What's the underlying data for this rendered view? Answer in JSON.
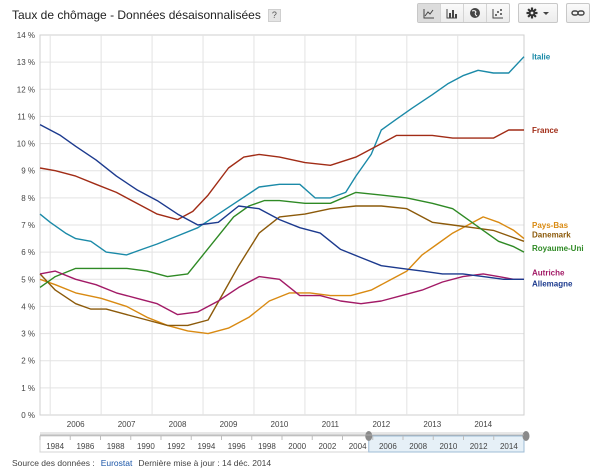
{
  "header": {
    "title": "Taux de chômage - Données désaisonnalisées",
    "help": "?"
  },
  "toolbar": {
    "view_buttons": [
      {
        "icon": "line-chart-icon",
        "active": true
      },
      {
        "icon": "bar-chart-icon",
        "active": false
      },
      {
        "icon": "globe-map-icon",
        "active": false
      },
      {
        "icon": "scatter-chart-icon",
        "active": false
      }
    ],
    "settings_icon": "gear-icon",
    "dropdown_icon": "chevron-down-icon",
    "link_icon": "chain-link-icon"
  },
  "colors": {
    "Italie": "#1b8aa8",
    "France": "#a12c16",
    "Pays-Bas": "#d98a12",
    "Danemark": "#8c5a0a",
    "Royaume-Uni": "#2f8a25",
    "Autriche": "#a21a66",
    "Allemagne": "#1c3a8e",
    "grid": "#e3e3e3",
    "label_blue": "#1a55a8"
  },
  "chart_data": {
    "type": "line",
    "title": "",
    "xlabel": "",
    "ylabel": "",
    "x_range": [
      2005.3,
      2014.8
    ],
    "x_ticks": [
      2006,
      2007,
      2008,
      2009,
      2010,
      2011,
      2012,
      2013,
      2014
    ],
    "ylim": [
      0,
      14
    ],
    "y_ticks": [
      "0 %",
      "1 %",
      "2 %",
      "3 %",
      "4 %",
      "5 %",
      "6 %",
      "7 %",
      "8 %",
      "9 %",
      "10 %",
      "11 %",
      "12 %",
      "13 %",
      "14 %"
    ],
    "grid": true,
    "legend": "right, end-of-line labels",
    "series": [
      {
        "name": "Italie",
        "x": [
          2005.3,
          2005.5,
          2005.8,
          2006.0,
          2006.3,
          2006.6,
          2007.0,
          2007.3,
          2007.6,
          2008.0,
          2008.4,
          2008.8,
          2009.2,
          2009.6,
          2010.0,
          2010.4,
          2010.7,
          2011.0,
          2011.3,
          2011.5,
          2011.8,
          2012.0,
          2012.3,
          2012.6,
          2013.0,
          2013.3,
          2013.6,
          2013.9,
          2014.2,
          2014.5,
          2014.8
        ],
        "values": [
          7.4,
          7.1,
          6.7,
          6.5,
          6.4,
          6.0,
          5.9,
          6.1,
          6.3,
          6.6,
          6.9,
          7.4,
          7.9,
          8.4,
          8.5,
          8.5,
          8.0,
          8.0,
          8.2,
          8.8,
          9.6,
          10.5,
          10.9,
          11.3,
          11.8,
          12.2,
          12.5,
          12.7,
          12.6,
          12.6,
          13.2
        ]
      },
      {
        "name": "France",
        "x": [
          2005.3,
          2005.6,
          2006.0,
          2006.4,
          2006.8,
          2007.2,
          2007.6,
          2008.0,
          2008.3,
          2008.6,
          2009.0,
          2009.3,
          2009.6,
          2010.0,
          2010.5,
          2011.0,
          2011.5,
          2011.8,
          2012.0,
          2012.3,
          2012.6,
          2013.0,
          2013.4,
          2013.8,
          2014.2,
          2014.5,
          2014.8
        ],
        "values": [
          9.1,
          9.0,
          8.8,
          8.5,
          8.2,
          7.8,
          7.4,
          7.2,
          7.5,
          8.1,
          9.1,
          9.5,
          9.6,
          9.5,
          9.3,
          9.2,
          9.5,
          9.8,
          10.0,
          10.3,
          10.3,
          10.3,
          10.2,
          10.2,
          10.2,
          10.5,
          10.5
        ]
      },
      {
        "name": "Pays-Bas",
        "x": [
          2005.3,
          2005.6,
          2006.0,
          2006.5,
          2007.0,
          2007.4,
          2007.8,
          2008.2,
          2008.6,
          2009.0,
          2009.4,
          2009.8,
          2010.2,
          2010.6,
          2011.0,
          2011.4,
          2011.8,
          2012.2,
          2012.5,
          2012.8,
          2013.1,
          2013.4,
          2013.7,
          2014.0,
          2014.3,
          2014.6,
          2014.8
        ],
        "values": [
          5.0,
          4.8,
          4.5,
          4.3,
          4.0,
          3.6,
          3.3,
          3.1,
          3.0,
          3.2,
          3.6,
          4.2,
          4.5,
          4.5,
          4.4,
          4.4,
          4.6,
          5.0,
          5.3,
          5.9,
          6.3,
          6.7,
          7.0,
          7.3,
          7.1,
          6.8,
          6.5
        ]
      },
      {
        "name": "Danemark",
        "x": [
          2005.3,
          2005.6,
          2006.0,
          2006.3,
          2006.6,
          2007.0,
          2007.4,
          2007.8,
          2008.2,
          2008.6,
          2008.9,
          2009.2,
          2009.6,
          2010.0,
          2010.5,
          2011.0,
          2011.5,
          2012.0,
          2012.5,
          2013.0,
          2013.4,
          2013.8,
          2014.2,
          2014.5,
          2014.8
        ],
        "values": [
          5.2,
          4.6,
          4.1,
          3.9,
          3.9,
          3.7,
          3.5,
          3.3,
          3.3,
          3.5,
          4.5,
          5.5,
          6.7,
          7.3,
          7.4,
          7.6,
          7.7,
          7.7,
          7.6,
          7.1,
          7.0,
          6.9,
          6.8,
          6.6,
          6.4
        ]
      },
      {
        "name": "Royaume-Uni",
        "x": [
          2005.3,
          2005.6,
          2006.0,
          2006.5,
          2007.0,
          2007.4,
          2007.8,
          2008.2,
          2008.5,
          2008.8,
          2009.1,
          2009.4,
          2009.7,
          2010.0,
          2010.5,
          2011.0,
          2011.5,
          2012.0,
          2012.5,
          2013.0,
          2013.4,
          2013.7,
          2014.0,
          2014.3,
          2014.6,
          2014.8
        ],
        "values": [
          4.7,
          5.1,
          5.4,
          5.4,
          5.4,
          5.3,
          5.1,
          5.2,
          5.9,
          6.6,
          7.3,
          7.7,
          7.9,
          7.9,
          7.8,
          7.8,
          8.2,
          8.1,
          8.0,
          7.8,
          7.6,
          7.2,
          6.8,
          6.4,
          6.2,
          6.0
        ]
      },
      {
        "name": "Autriche",
        "x": [
          2005.3,
          2005.6,
          2006.0,
          2006.4,
          2006.8,
          2007.2,
          2007.6,
          2008.0,
          2008.4,
          2008.8,
          2009.2,
          2009.6,
          2010.0,
          2010.4,
          2010.8,
          2011.2,
          2011.6,
          2012.0,
          2012.4,
          2012.8,
          2013.2,
          2013.6,
          2014.0,
          2014.3,
          2014.6,
          2014.8
        ],
        "values": [
          5.2,
          5.3,
          5.0,
          4.8,
          4.5,
          4.3,
          4.1,
          3.7,
          3.8,
          4.2,
          4.7,
          5.1,
          5.0,
          4.4,
          4.4,
          4.2,
          4.1,
          4.2,
          4.4,
          4.6,
          4.9,
          5.1,
          5.2,
          5.1,
          5.0,
          5.0
        ]
      },
      {
        "name": "Allemagne",
        "x": [
          2005.3,
          2005.7,
          2006.0,
          2006.4,
          2006.8,
          2007.2,
          2007.6,
          2008.0,
          2008.4,
          2008.8,
          2009.2,
          2009.6,
          2010.0,
          2010.4,
          2010.8,
          2011.2,
          2011.6,
          2012.0,
          2012.4,
          2012.8,
          2013.2,
          2013.6,
          2014.0,
          2014.4,
          2014.8
        ],
        "values": [
          10.7,
          10.3,
          9.9,
          9.4,
          8.8,
          8.3,
          7.9,
          7.4,
          7.0,
          7.1,
          7.7,
          7.6,
          7.2,
          6.9,
          6.7,
          6.1,
          5.8,
          5.5,
          5.4,
          5.3,
          5.2,
          5.2,
          5.1,
          5.0,
          5.0
        ]
      }
    ]
  },
  "navigator": {
    "years": [
      "1984",
      "1986",
      "1988",
      "1990",
      "1992",
      "1994",
      "1996",
      "1998",
      "2000",
      "2002",
      "2004",
      "2006",
      "2008",
      "2010",
      "2012",
      "2014"
    ]
  },
  "footer": {
    "source_label": "Source des données :",
    "source_name": "Eurostat",
    "updated_label": "Dernière mise à jour : 14 déc. 2014"
  }
}
